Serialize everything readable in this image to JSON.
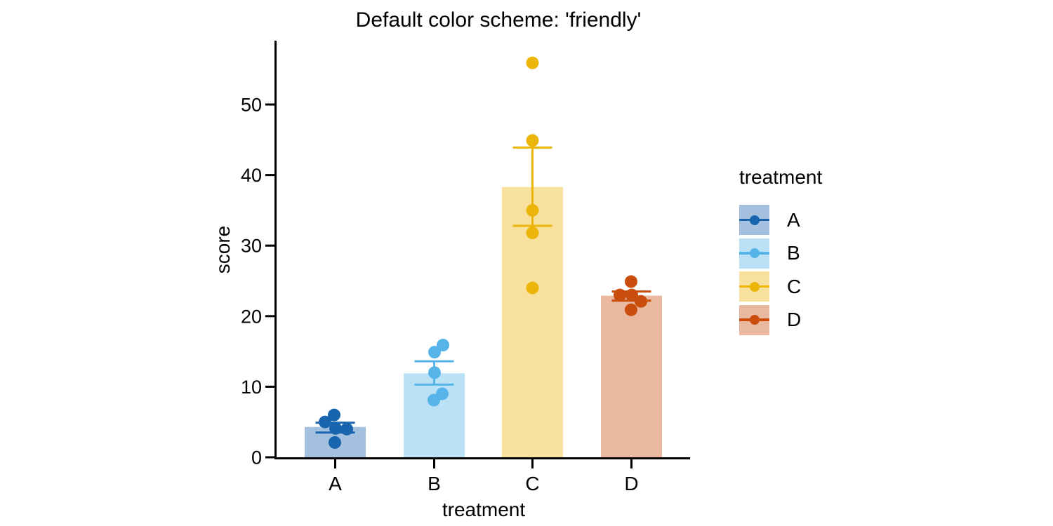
{
  "chart_data": {
    "type": "bar",
    "title": "Default color scheme: 'friendly'",
    "xlabel": "treatment",
    "ylabel": "score",
    "categories": [
      "A",
      "B",
      "C",
      "D"
    ],
    "yticks": [
      0,
      10,
      20,
      30,
      40,
      50
    ],
    "ylim": [
      0,
      59
    ],
    "grid": false,
    "error_type": "mean ± SEM",
    "axis_color": "#000000",
    "text_color": "#000000",
    "legend": {
      "title": "treatment",
      "position": "right",
      "entries": [
        "A",
        "B",
        "C",
        "D"
      ]
    },
    "series": [
      {
        "name": "A",
        "color": "#1965AD",
        "fill": "#A3C1DE",
        "mean": 4.3,
        "err_low": 3.5,
        "err_high": 4.9,
        "points": [
          {
            "v": 6.0,
            "dx": -1.5
          },
          {
            "v": 5.0,
            "dx": -14.5
          },
          {
            "v": 4.1,
            "dx": 0.5
          },
          {
            "v": 4.0,
            "dx": 16.5
          },
          {
            "v": 2.1,
            "dx": -0.5
          }
        ]
      },
      {
        "name": "B",
        "color": "#56B4E9",
        "fill": "#BBE1F6",
        "mean": 11.9,
        "err_low": 10.3,
        "err_high": 13.6,
        "points": [
          {
            "v": 15.9,
            "dx": 12.5
          },
          {
            "v": 14.9,
            "dx": 0.5
          },
          {
            "v": 12.0,
            "dx": 0.5
          },
          {
            "v": 9.0,
            "dx": 11.5
          },
          {
            "v": 8.1,
            "dx": -0.5
          }
        ]
      },
      {
        "name": "C",
        "color": "#ECB50A",
        "fill": "#F7E19D",
        "mean": 38.3,
        "err_low": 32.8,
        "err_high": 43.9,
        "points": [
          {
            "v": 55.9,
            "dx": 0
          },
          {
            "v": 44.9,
            "dx": 0
          },
          {
            "v": 35.0,
            "dx": 0
          },
          {
            "v": 31.8,
            "dx": 0
          },
          {
            "v": 24.0,
            "dx": 0
          }
        ]
      },
      {
        "name": "D",
        "color": "#C94D0C",
        "fill": "#E9B89E",
        "mean": 22.9,
        "err_low": 22.2,
        "err_high": 23.5,
        "points": [
          {
            "v": 24.9,
            "dx": -0.5
          },
          {
            "v": 23.0,
            "dx": -16.5
          },
          {
            "v": 23.0,
            "dx": 0.5
          },
          {
            "v": 22.1,
            "dx": 13.5
          },
          {
            "v": 20.9,
            "dx": -0.5
          }
        ]
      }
    ]
  }
}
